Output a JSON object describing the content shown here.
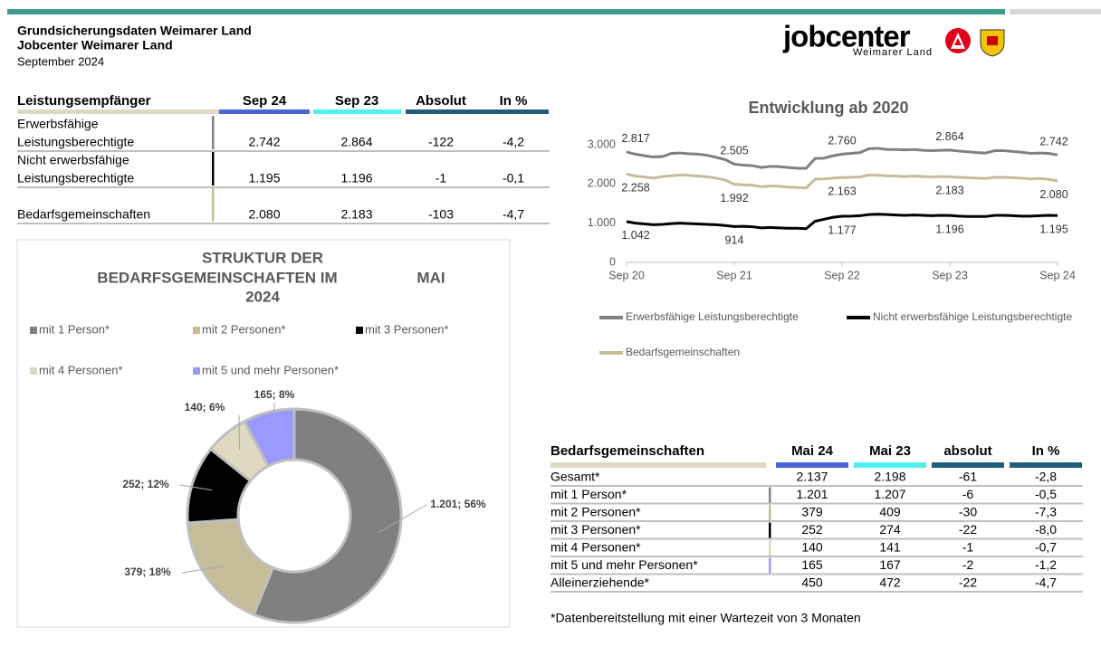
{
  "header": {
    "title": "Grundsicherungsdaten Weimarer Land",
    "subtitle": "Jobcenter Weimarer Land",
    "date": "September 2024"
  },
  "logo": {
    "name": "jobcenter",
    "region": "Weimarer Land"
  },
  "table1": {
    "headers": [
      "Leistungsempfänger",
      "Sep 24",
      "Sep 23",
      "Absolut",
      "In %"
    ],
    "rows": [
      {
        "label": [
          "Erwerbsfähige",
          "Leistungsberechtigte"
        ],
        "cells": [
          "2.742",
          "2.864",
          "-122",
          "-4,2"
        ]
      },
      {
        "label": [
          "Nicht erwerbsfähige",
          "Leistungsberechtigte"
        ],
        "cells": [
          "1.195",
          "1.196",
          "-1",
          "-0,1"
        ]
      },
      {
        "label": [
          "Bedarfsgemeinschaften"
        ],
        "cells": [
          "2.080",
          "2.183",
          "-103",
          "-4,7"
        ]
      }
    ]
  },
  "table2": {
    "headers": [
      "Bedarfsgemeinschaften",
      "Mai 24",
      "Mai 23",
      "absolut",
      "In %"
    ],
    "rows": [
      [
        "Gesamt*",
        "2.137",
        "2.198",
        "-61",
        "-2,8"
      ],
      [
        "mit 1 Person*",
        "1.201",
        "1.207",
        "-6",
        "-0,5"
      ],
      [
        "mit 2 Personen*",
        "379",
        "409",
        "-30",
        "-7,3"
      ],
      [
        "mit 3 Personen*",
        "252",
        "274",
        "-22",
        "-8,0"
      ],
      [
        "mit 4 Personen*",
        "140",
        "141",
        "-1",
        "-0,7"
      ],
      [
        "mit 5 und mehr Personen*",
        "165",
        "167",
        "-2",
        "-1,2"
      ],
      [
        "Alleinerziehende*",
        "450",
        "472",
        "-22",
        "-4,7"
      ]
    ]
  },
  "footnote": "*Datenbereitstellung mit einer Wartezeit von 3 Monaten",
  "chart_data": [
    {
      "type": "line",
      "title": "Entwicklung ab 2020",
      "categories": [
        "Sep 20",
        null,
        null,
        null,
        null,
        null,
        null,
        null,
        null,
        null,
        null,
        null,
        "Sep 21",
        null,
        null,
        null,
        null,
        null,
        null,
        null,
        null,
        null,
        null,
        null,
        "Sep 22",
        null,
        null,
        null,
        null,
        null,
        null,
        null,
        null,
        null,
        null,
        null,
        "Sep 23",
        null,
        null,
        null,
        null,
        null,
        null,
        null,
        null,
        null,
        null,
        null,
        "Sep 24"
      ],
      "ylim": [
        0,
        3200
      ],
      "yticks": [
        0,
        {
          "value": 1000,
          "label": "1.000"
        },
        {
          "value": 2000,
          "label": "2.000"
        },
        {
          "value": 3000,
          "label": "3.000"
        }
      ],
      "grid": false,
      "series": [
        {
          "name": "Erwerbsfähige Leistungsberechtigte",
          "color": "#808080",
          "values": [
            2817,
            2760,
            2720,
            2690,
            2700,
            2780,
            2790,
            2770,
            2760,
            2730,
            2680,
            2620,
            2505,
            2480,
            2470,
            2420,
            2450,
            2440,
            2420,
            2400,
            2400,
            2650,
            2660,
            2720,
            2760,
            2780,
            2800,
            2900,
            2910,
            2880,
            2880,
            2870,
            2880,
            2860,
            2850,
            2860,
            2864,
            2840,
            2820,
            2800,
            2790,
            2850,
            2850,
            2830,
            2810,
            2780,
            2790,
            2780,
            2742
          ],
          "value_labels": [
            "2.817",
            null,
            null,
            null,
            null,
            null,
            null,
            null,
            null,
            null,
            null,
            null,
            "2.505",
            null,
            null,
            null,
            null,
            null,
            null,
            null,
            null,
            null,
            null,
            null,
            "2.760",
            null,
            null,
            null,
            null,
            null,
            null,
            null,
            null,
            null,
            null,
            null,
            "2.864",
            null,
            null,
            null,
            null,
            null,
            null,
            null,
            null,
            null,
            null,
            null,
            "2.742"
          ]
        },
        {
          "name": "Nicht erwerbsfähige Leistungsberechtigte",
          "color": "#000000",
          "values": [
            1042,
            1000,
            980,
            960,
            970,
            990,
            1000,
            990,
            980,
            970,
            960,
            940,
            914,
            920,
            910,
            880,
            890,
            880,
            870,
            870,
            860,
            1050,
            1100,
            1150,
            1177,
            1180,
            1190,
            1220,
            1230,
            1220,
            1210,
            1200,
            1210,
            1200,
            1190,
            1200,
            1196,
            1180,
            1170,
            1170,
            1170,
            1200,
            1200,
            1190,
            1180,
            1180,
            1190,
            1200,
            1195
          ],
          "value_labels": [
            "1.042",
            null,
            null,
            null,
            null,
            null,
            null,
            null,
            null,
            null,
            null,
            null,
            "914",
            null,
            null,
            null,
            null,
            null,
            null,
            null,
            null,
            null,
            null,
            null,
            "1.177",
            null,
            null,
            null,
            null,
            null,
            null,
            null,
            null,
            null,
            null,
            null,
            "1.196",
            null,
            null,
            null,
            null,
            null,
            null,
            null,
            null,
            null,
            null,
            null,
            "1.195"
          ]
        },
        {
          "name": "Bedarfsgemeinschaften",
          "color": "#c4bd97",
          "values": [
            2258,
            2200,
            2180,
            2150,
            2190,
            2210,
            2230,
            2220,
            2200,
            2180,
            2150,
            2100,
            1992,
            1980,
            1970,
            1930,
            1950,
            1940,
            1920,
            1910,
            1900,
            2120,
            2130,
            2150,
            2163,
            2170,
            2180,
            2230,
            2220,
            2210,
            2200,
            2190,
            2200,
            2190,
            2180,
            2190,
            2183,
            2170,
            2160,
            2150,
            2140,
            2170,
            2170,
            2160,
            2150,
            2130,
            2140,
            2120,
            2080
          ],
          "value_labels": [
            "2.258",
            null,
            null,
            null,
            null,
            null,
            null,
            null,
            null,
            null,
            null,
            null,
            "1.992",
            null,
            null,
            null,
            null,
            null,
            null,
            null,
            null,
            null,
            null,
            null,
            "2.163",
            null,
            null,
            null,
            null,
            null,
            null,
            null,
            null,
            null,
            null,
            null,
            "2.183",
            null,
            null,
            null,
            null,
            null,
            null,
            null,
            null,
            null,
            null,
            null,
            "2.080"
          ]
        }
      ]
    },
    {
      "type": "donut",
      "title": [
        "STRUKTUR DER",
        "BEDARFSGEMEINSCHAFTEN IM",
        "MAI",
        "2024"
      ],
      "categories": [
        "mit 1 Person*",
        "mit 2 Personen*",
        "mit 3 Personen*",
        "mit 4 Personen*",
        "mit 5 und mehr Personen*"
      ],
      "values": [
        1201,
        379,
        252,
        140,
        165
      ],
      "value_labels": [
        "1.201; 56%",
        "379; 18%",
        "252; 12%",
        "140; 6%",
        "165; 8%"
      ],
      "colors": [
        "#808080",
        "#c4bd97",
        "#000000",
        "#ddd9c3",
        "#9999ff"
      ]
    }
  ]
}
